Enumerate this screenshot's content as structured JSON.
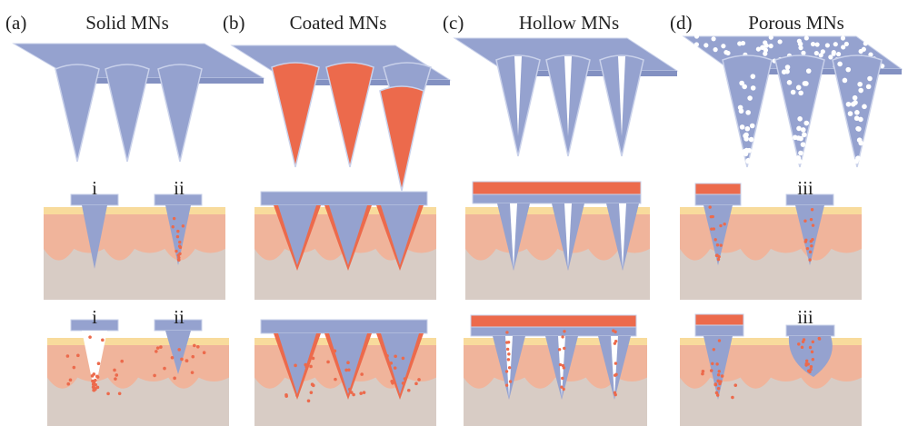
{
  "panels": [
    {
      "label": "(a)",
      "title": "Solid  MNs"
    },
    {
      "label": "(b)",
      "title": "Coated MNs"
    },
    {
      "label": "(c)",
      "title": "Hollow MNs"
    },
    {
      "label": "(d)",
      "title": "Porous MNs"
    }
  ],
  "labels": [
    "i",
    "ii",
    "i",
    "ii",
    "iii",
    "iii"
  ]
}
